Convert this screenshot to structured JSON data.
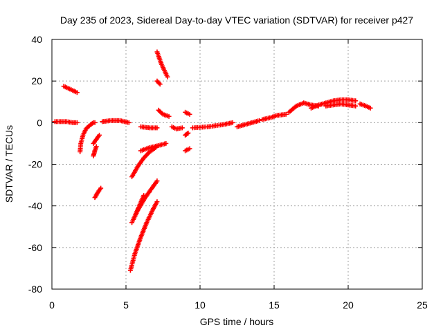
{
  "chart_data": {
    "type": "scatter",
    "title": "Day 235 of 2023, Sidereal Day-to-day VTEC variation (SDTVAR) for receiver p427",
    "xlabel": "GPS time / hours",
    "ylabel": "SDTVAR / TECUs",
    "xlim": [
      0,
      25
    ],
    "ylim": [
      -80,
      40
    ],
    "xticks": [
      0,
      5,
      10,
      15,
      20,
      25
    ],
    "yticks": [
      -80,
      -60,
      -40,
      -20,
      0,
      20,
      40
    ],
    "grid": true,
    "legend": "none",
    "marker": "plus",
    "color": "#ff0000",
    "series": [
      {
        "x": [
          0.2,
          0.6,
          1.0,
          1.4,
          1.7
        ],
        "y": [
          0.5,
          0.5,
          0.5,
          0.0,
          0.0
        ]
      },
      {
        "x": [
          0.8,
          1.1,
          1.4,
          1.7
        ],
        "y": [
          17.5,
          16.5,
          15.5,
          14.5
        ]
      },
      {
        "x": [
          1.9,
          1.95,
          2.1,
          2.3,
          2.6,
          2.8,
          2.9
        ],
        "y": [
          -14.0,
          -10.0,
          -6.0,
          -3.0,
          -1.0,
          0.0,
          0.0
        ]
      },
      {
        "x": [
          2.8,
          2.9,
          3.0
        ],
        "y": [
          -16.0,
          -13.5,
          -11.5
        ]
      },
      {
        "x": [
          2.8,
          3.0,
          3.2
        ],
        "y": [
          -10.0,
          -8.0,
          -6.0
        ]
      },
      {
        "x": [
          2.9,
          3.1,
          3.3
        ],
        "y": [
          -36.0,
          -33.5,
          -31.5
        ]
      },
      {
        "x": [
          3.4,
          4.0,
          4.6,
          5.2
        ],
        "y": [
          0.5,
          1.0,
          1.0,
          0.0
        ]
      },
      {
        "x": [
          5.4,
          5.8,
          6.2,
          6.6,
          7.0
        ],
        "y": [
          -26.0,
          -21.0,
          -17.0,
          -14.0,
          -12.0
        ]
      },
      {
        "x": [
          5.4,
          5.8,
          6.3,
          6.8,
          7.1
        ],
        "y": [
          -48.0,
          -42.0,
          -36.0,
          -31.0,
          -28.0
        ]
      },
      {
        "x": [
          5.6,
          5.9,
          6.2
        ],
        "y": [
          -45.0,
          -40.0,
          -35.0
        ]
      },
      {
        "x": [
          5.3,
          5.6,
          6.0,
          6.4,
          6.8,
          7.1
        ],
        "y": [
          -71.0,
          -63.0,
          -55.0,
          -48.0,
          -42.0,
          -38.0
        ]
      },
      {
        "x": [
          6.0,
          6.6,
          7.2,
          7.7
        ],
        "y": [
          -13.5,
          -12.0,
          -11.0,
          -10.0
        ]
      },
      {
        "x": [
          6.0,
          6.6,
          7.1
        ],
        "y": [
          -2.0,
          -2.5,
          -2.5
        ]
      },
      {
        "x": [
          7.1,
          7.4,
          7.8
        ],
        "y": [
          34.0,
          28.0,
          22.0
        ]
      },
      {
        "x": [
          7.1,
          7.3
        ],
        "y": [
          20.0,
          18.5
        ]
      },
      {
        "x": [
          7.2,
          7.5,
          7.9
        ],
        "y": [
          6.0,
          4.0,
          3.0
        ]
      },
      {
        "x": [
          8.1,
          8.4,
          8.8
        ],
        "y": [
          -2.0,
          -3.0,
          -2.5
        ]
      },
      {
        "x": [
          9.0,
          9.3
        ],
        "y": [
          5.0,
          4.0
        ]
      },
      {
        "x": [
          9.0,
          9.3
        ],
        "y": [
          -13.5,
          -12.5
        ]
      },
      {
        "x": [
          9.0,
          9.2
        ],
        "y": [
          -6.0,
          -5.0
        ]
      },
      {
        "x": [
          9.5,
          10.5,
          11.5,
          12.2
        ],
        "y": [
          -2.5,
          -2.0,
          -1.0,
          0.0
        ]
      },
      {
        "x": [
          12.5,
          13.0,
          13.5,
          14.0
        ],
        "y": [
          -2.0,
          -1.0,
          0.0,
          1.0
        ]
      },
      {
        "x": [
          14.2,
          14.8,
          15.2,
          15.8
        ],
        "y": [
          1.5,
          2.5,
          3.5,
          4.0
        ]
      },
      {
        "x": [
          16.0,
          16.5,
          17.0,
          17.5,
          18.0
        ],
        "y": [
          5.0,
          8.0,
          9.5,
          8.5,
          8.0
        ]
      },
      {
        "x": [
          17.5,
          18.0,
          18.5,
          19.0,
          19.5,
          20.0,
          20.5
        ],
        "y": [
          7.0,
          8.5,
          9.5,
          10.5,
          11.0,
          11.0,
          10.5
        ]
      },
      {
        "x": [
          18.5,
          19.0,
          19.5,
          20.0,
          20.5
        ],
        "y": [
          8.0,
          8.5,
          9.0,
          8.5,
          8.0
        ]
      },
      {
        "x": [
          20.8,
          21.2,
          21.5
        ],
        "y": [
          9.0,
          8.0,
          7.0
        ]
      }
    ]
  }
}
